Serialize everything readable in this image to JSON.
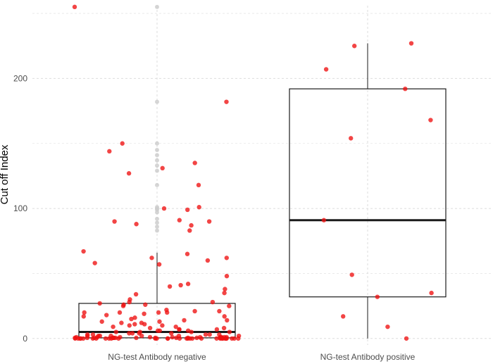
{
  "chart_data": {
    "type": "boxplot",
    "title": "",
    "xlabel": "",
    "ylabel": "Cut off Index",
    "ylim": [
      -5,
      256
    ],
    "yticks": [
      0,
      100,
      200
    ],
    "grid": true,
    "legend": "none",
    "categories": [
      "NG-test Antibody negative",
      "NG-test Antibody positive"
    ],
    "boxes": [
      {
        "category": "NG-test Antibody negative",
        "min": 0,
        "q1": 0.5,
        "median": 5,
        "q3": 27,
        "max": 66,
        "outliers": [
          255,
          182,
          150,
          145,
          141,
          137,
          133,
          129,
          118,
          101,
          100,
          99,
          97,
          92,
          89,
          86,
          83
        ]
      },
      {
        "category": "NG-test Antibody positive",
        "min": 0,
        "q1": 32,
        "median": 91,
        "q3": 192,
        "max": 227,
        "outliers": []
      }
    ],
    "points": [
      {
        "category": "NG-test Antibody negative",
        "values": [
          255,
          182,
          150,
          144,
          135,
          131,
          127,
          118,
          101,
          100,
          99,
          91,
          90,
          90,
          88,
          87,
          83,
          67,
          65,
          62,
          62,
          60,
          58,
          57,
          48,
          42,
          41,
          40,
          38,
          35,
          34,
          30,
          28,
          28,
          27,
          26,
          26,
          25,
          25,
          22,
          21,
          21,
          20,
          20,
          20,
          20,
          19,
          18,
          17,
          17,
          16,
          15,
          14,
          14,
          13,
          13,
          12,
          12,
          11,
          11,
          10,
          10,
          9,
          9,
          8,
          8,
          7,
          7,
          7,
          6,
          6,
          6,
          5,
          5,
          5,
          5,
          4,
          4,
          4,
          4,
          3,
          3,
          3,
          3,
          3,
          2,
          2,
          2,
          2,
          2,
          2,
          2,
          1,
          1,
          1,
          1,
          1,
          1,
          1,
          1,
          1,
          1,
          1,
          0.5,
          0.5,
          0.5,
          0.5,
          0.5,
          0.5,
          0.5,
          0.5,
          0.5,
          0.5,
          0.5,
          0.5,
          0.5,
          0.5,
          0,
          0,
          0,
          0,
          0,
          0,
          0,
          0,
          0,
          0,
          0,
          0,
          0,
          0,
          0,
          0,
          0,
          0,
          0,
          0,
          0,
          0,
          0,
          0,
          0,
          0,
          0,
          0,
          0,
          0,
          0
        ]
      },
      {
        "category": "NG-test Antibody positive",
        "values": [
          227,
          225,
          207,
          192,
          168,
          154,
          91,
          49,
          35,
          32,
          17,
          9,
          0
        ]
      }
    ],
    "colors": {
      "points": "#ee1111",
      "outliers": "#cccccc",
      "box": "#1a1a1a",
      "grid": "#dddddd"
    }
  }
}
